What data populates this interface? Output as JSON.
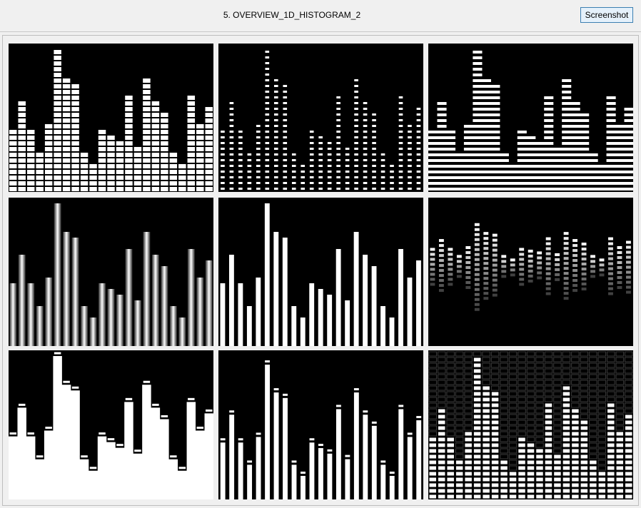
{
  "window": {
    "title": "5. OVERVIEW_1D_HISTOGRAM_2"
  },
  "toolbar": {
    "screenshot_label": "Screenshot"
  },
  "chart_data": {
    "type": "bar",
    "description_styles": [
      "segmented-blocks",
      "dotted-ticks",
      "horizontal-stripes",
      "gradient-bars",
      "white-bars",
      "gradient-dot-band",
      "area-with-peaks",
      "bars-with-peak-caps",
      "grid-cells"
    ],
    "values": [
      11,
      16,
      11,
      7,
      12,
      25,
      20,
      19,
      7,
      5,
      11,
      10,
      9,
      17,
      8,
      20,
      16,
      14,
      7,
      5,
      17,
      12,
      15
    ],
    "ylim": [
      0,
      26
    ]
  }
}
